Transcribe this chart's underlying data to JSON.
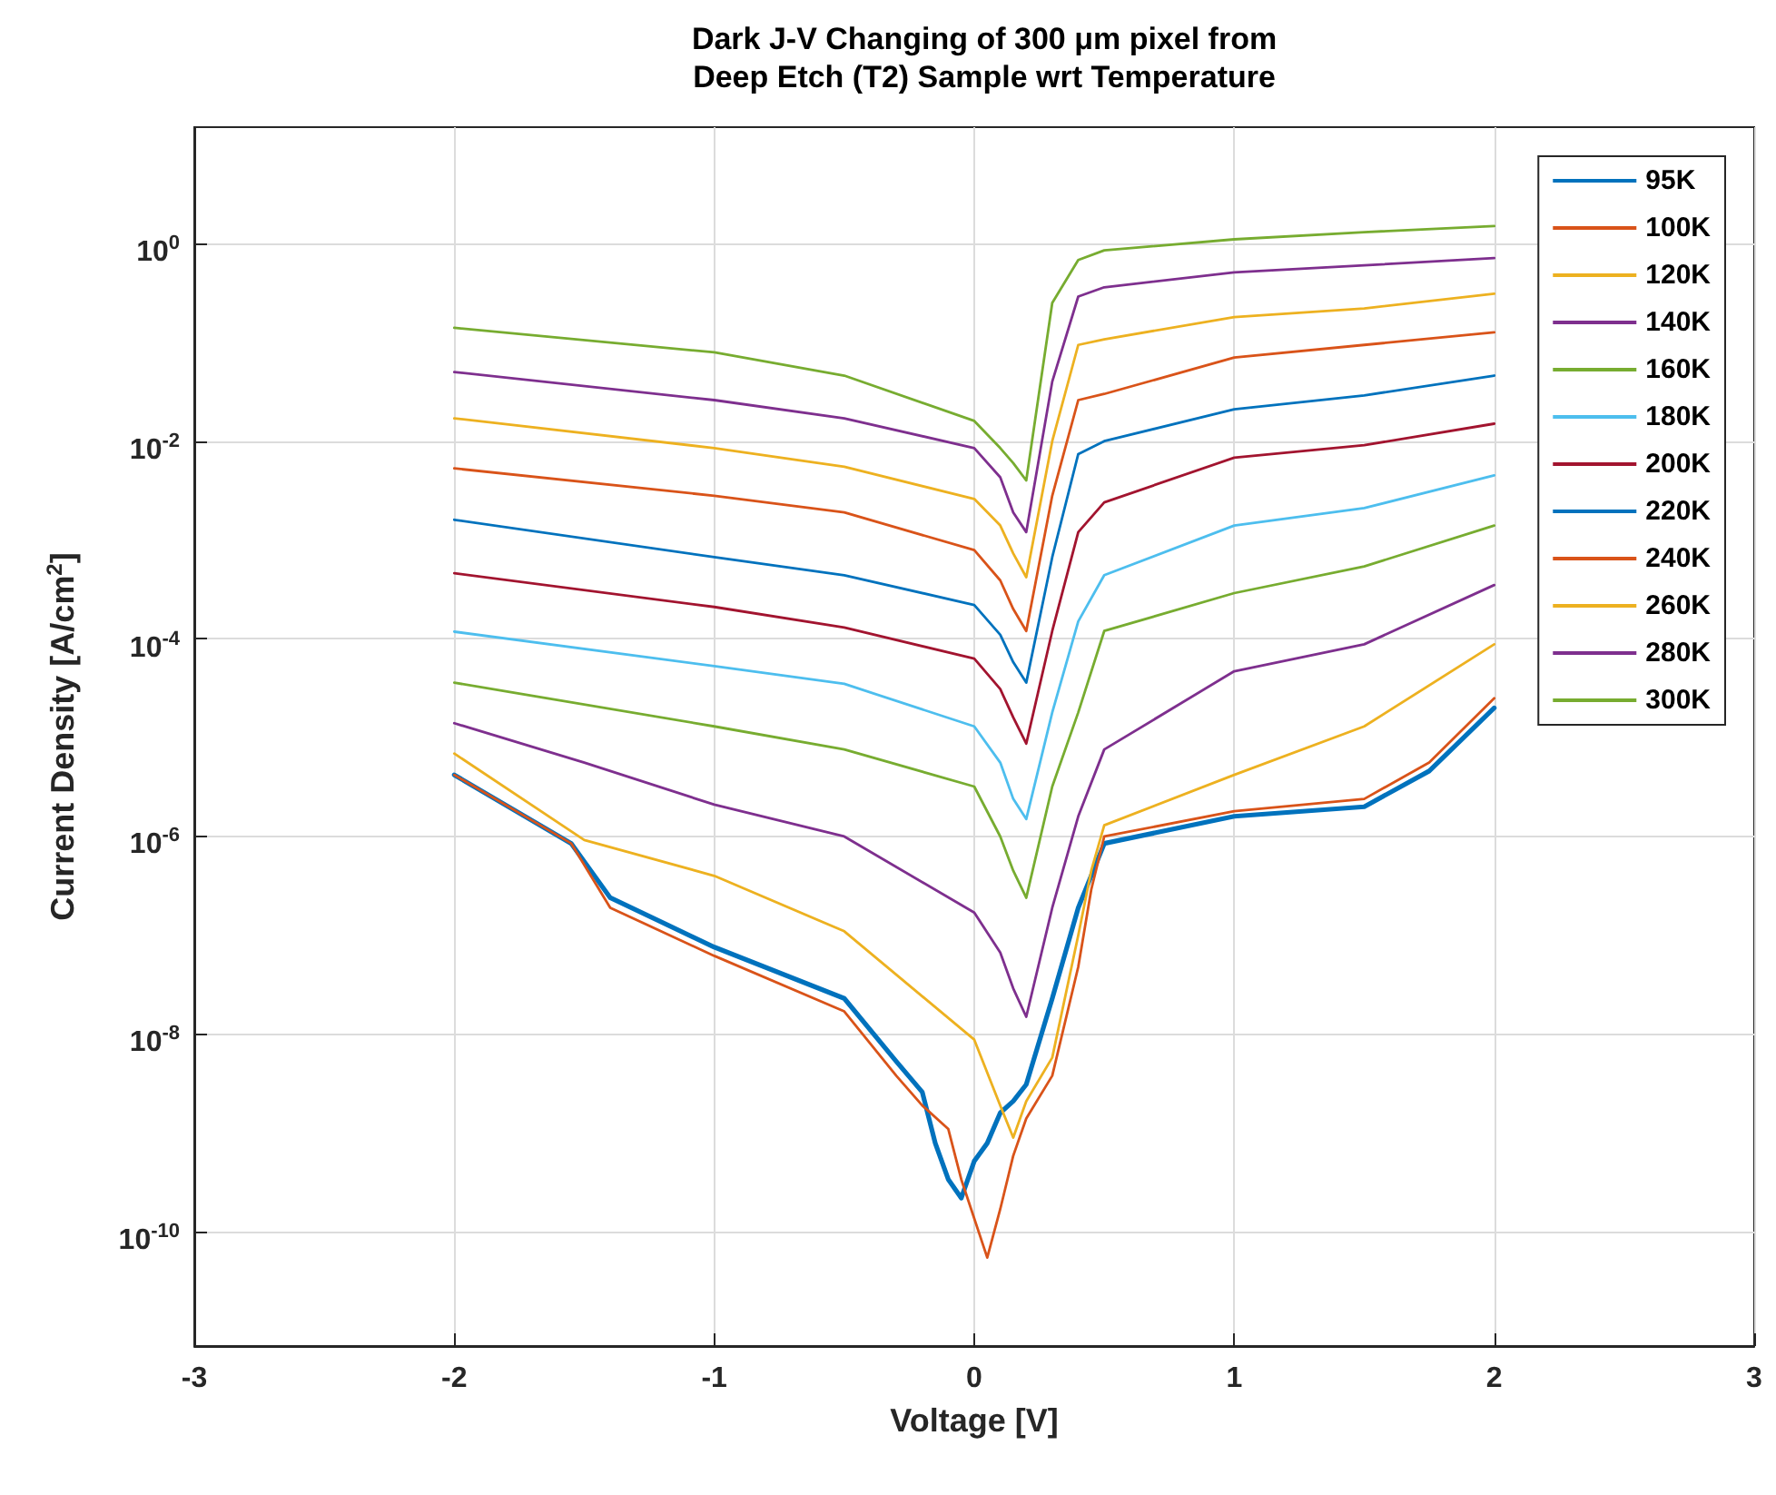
{
  "chart_data": {
    "type": "line",
    "title": "Dark J-V Changing of 300 μm pixel from\nDeep Etch (T2) Sample wrt Temperature",
    "xlabel": "Voltage [V]",
    "ylabel": "Current Density [A/cm$^{2}$]",
    "xlim": [
      -3,
      3
    ],
    "xticks": [
      -3,
      -2,
      -1,
      0,
      1,
      2,
      3
    ],
    "ylim": [
      7e-12,
      15
    ],
    "log": "y",
    "yticks": [
      {
        "value": 1e-10,
        "label": "10$^{-10}$"
      },
      {
        "value": 1e-08,
        "label": "10$^{-8}$"
      },
      {
        "value": 1e-06,
        "label": "10$^{-6}$"
      },
      {
        "value": 0.0001,
        "label": "10$^{-4}$"
      },
      {
        "value": 0.01,
        "label": "10$^{-2}$"
      },
      {
        "value": 1,
        "label": "10$^{0}$"
      }
    ],
    "grid": true,
    "legend": "top right",
    "marker": "none",
    "line_style": "solid",
    "series": [
      {
        "name": "95K",
        "color": "#0072bd",
        "x": [
          -2,
          -1.55,
          -1.4,
          -1,
          -0.5,
          -0.3,
          -0.2,
          -0.15,
          -0.1,
          -0.05,
          0,
          0.05,
          0.1,
          0.15,
          0.2,
          0.3,
          0.4,
          0.5,
          1,
          1.5,
          1.75,
          2
        ],
        "values": [
          4.2e-06,
          8.5e-07,
          2.4e-07,
          7.6e-08,
          2.3e-08,
          5.3e-09,
          2.6e-09,
          7.9e-10,
          3.4e-10,
          2.2e-10,
          5.2e-10,
          7.9e-10,
          1.6e-09,
          2.1e-09,
          3.1e-09,
          2.3e-08,
          1.9e-07,
          8.5e-07,
          1.6e-06,
          2e-06,
          4.6e-06,
          2e-05
        ]
      },
      {
        "name": "100K",
        "color": "#d95319",
        "x": [
          -2,
          -1.55,
          -1.4,
          -1,
          -0.5,
          -0.3,
          -0.2,
          -0.1,
          -0.05,
          0.05,
          0.1,
          0.15,
          0.2,
          0.3,
          0.4,
          0.45,
          0.5,
          1,
          1.5,
          1.75,
          2
        ],
        "values": [
          4.2e-06,
          8.5e-07,
          1.9e-07,
          6.2e-08,
          1.7e-08,
          3.8e-09,
          1.9e-09,
          1.1e-09,
          3.4e-10,
          5.5e-11,
          1.7e-10,
          5.9e-10,
          1.4e-09,
          3.8e-09,
          4.8e-08,
          2.9e-07,
          1e-06,
          1.8e-06,
          2.4e-06,
          5.6e-06,
          2.5e-05
        ]
      },
      {
        "name": "120K",
        "color": "#edb120",
        "x": [
          -2,
          -1.5,
          -1,
          -0.5,
          0,
          0.1,
          0.15,
          0.2,
          0.3,
          0.4,
          0.45,
          0.5,
          1,
          1.5,
          2
        ],
        "values": [
          6.9e-06,
          9.2e-07,
          4e-07,
          1.1e-07,
          8.8e-09,
          1.9e-09,
          9e-10,
          2.1e-09,
          5.8e-09,
          1e-07,
          4.5e-07,
          1.3e-06,
          4.2e-06,
          1.3e-05,
          8.8e-05
        ]
      },
      {
        "name": "140K",
        "color": "#7e2f8e",
        "x": [
          -2,
          -1.5,
          -1,
          -0.5,
          0,
          0.1,
          0.15,
          0.2,
          0.3,
          0.4,
          0.5,
          1,
          1.5,
          2
        ],
        "values": [
          1.4e-05,
          5.6e-06,
          2.1e-06,
          1e-06,
          1.7e-07,
          6.7e-08,
          2.9e-08,
          1.5e-08,
          1.9e-07,
          1.6e-06,
          7.6e-06,
          4.7e-05,
          8.8e-05,
          0.00035
        ]
      },
      {
        "name": "160K",
        "color": "#77ac30",
        "x": [
          -2,
          -1,
          -0.5,
          0,
          0.1,
          0.15,
          0.2,
          0.3,
          0.4,
          0.5,
          1,
          1.5,
          2
        ],
        "values": [
          3.6e-05,
          1.3e-05,
          7.6e-06,
          3.2e-06,
          1e-06,
          4.5e-07,
          2.4e-07,
          3.2e-06,
          1.8e-05,
          0.00012,
          0.00029,
          0.00054,
          0.0014
        ]
      },
      {
        "name": "180K",
        "color": "#4dbeee",
        "x": [
          -2,
          -1,
          -0.5,
          0,
          0.1,
          0.15,
          0.2,
          0.3,
          0.4,
          0.5,
          1,
          1.5,
          2
        ],
        "values": [
          0.000118,
          5.3e-05,
          3.5e-05,
          1.3e-05,
          5.6e-06,
          2.4e-06,
          1.5e-06,
          1.8e-05,
          0.00015,
          0.00044,
          0.0014,
          0.0021,
          0.0045
        ]
      },
      {
        "name": "200K",
        "color": "#a2142f",
        "x": [
          -2,
          -1,
          -0.5,
          0,
          0.1,
          0.15,
          0.2,
          0.3,
          0.4,
          0.5,
          1,
          1.5,
          2
        ],
        "values": [
          0.00046,
          0.00021,
          0.00013,
          6.3e-05,
          3.1e-05,
          1.6e-05,
          8.7e-06,
          0.00012,
          0.0012,
          0.0024,
          0.0068,
          0.0091,
          0.015
        ]
      },
      {
        "name": "220K",
        "color": "#0072bd",
        "x": [
          -2,
          -1,
          -0.5,
          0,
          0.1,
          0.15,
          0.2,
          0.3,
          0.4,
          0.5,
          1,
          1.5,
          2
        ],
        "values": [
          0.0016,
          0.00067,
          0.00044,
          0.00022,
          0.00011,
          5.8e-05,
          3.6e-05,
          0.00067,
          0.0074,
          0.01,
          0.021,
          0.029,
          0.046
        ]
      },
      {
        "name": "240K",
        "color": "#d95319",
        "x": [
          -2,
          -1,
          -0.5,
          0,
          0.1,
          0.15,
          0.2,
          0.3,
          0.4,
          0.5,
          1,
          1.5,
          2
        ],
        "values": [
          0.0053,
          0.0028,
          0.0019,
          0.00079,
          0.00039,
          0.0002,
          0.00012,
          0.0028,
          0.026,
          0.03,
          0.07,
          0.094,
          0.126
        ]
      },
      {
        "name": "260K",
        "color": "#edb120",
        "x": [
          -2,
          -1,
          -0.5,
          0,
          0.1,
          0.15,
          0.2,
          0.3,
          0.4,
          0.5,
          1,
          1.5,
          2
        ],
        "values": [
          0.017,
          0.0085,
          0.0055,
          0.0026,
          0.0014,
          0.00073,
          0.00042,
          0.01,
          0.094,
          0.107,
          0.18,
          0.22,
          0.31
        ]
      },
      {
        "name": "280K",
        "color": "#7e2f8e",
        "x": [
          -2,
          -1,
          -0.5,
          0,
          0.1,
          0.15,
          0.2,
          0.3,
          0.4,
          0.5,
          1,
          1.5,
          2
        ],
        "values": [
          0.05,
          0.026,
          0.017,
          0.0085,
          0.0043,
          0.0019,
          0.0012,
          0.04,
          0.29,
          0.36,
          0.51,
          0.6,
          0.71
        ]
      },
      {
        "name": "300K",
        "color": "#77ac30",
        "x": [
          -2,
          -1,
          -0.5,
          0,
          0.1,
          0.15,
          0.2,
          0.3,
          0.4,
          0.5,
          1,
          1.5,
          2
        ],
        "values": [
          0.14,
          0.079,
          0.046,
          0.016,
          0.0085,
          0.006,
          0.004,
          0.25,
          0.68,
          0.85,
          1.1,
          1.3,
          1.5
        ]
      }
    ]
  }
}
